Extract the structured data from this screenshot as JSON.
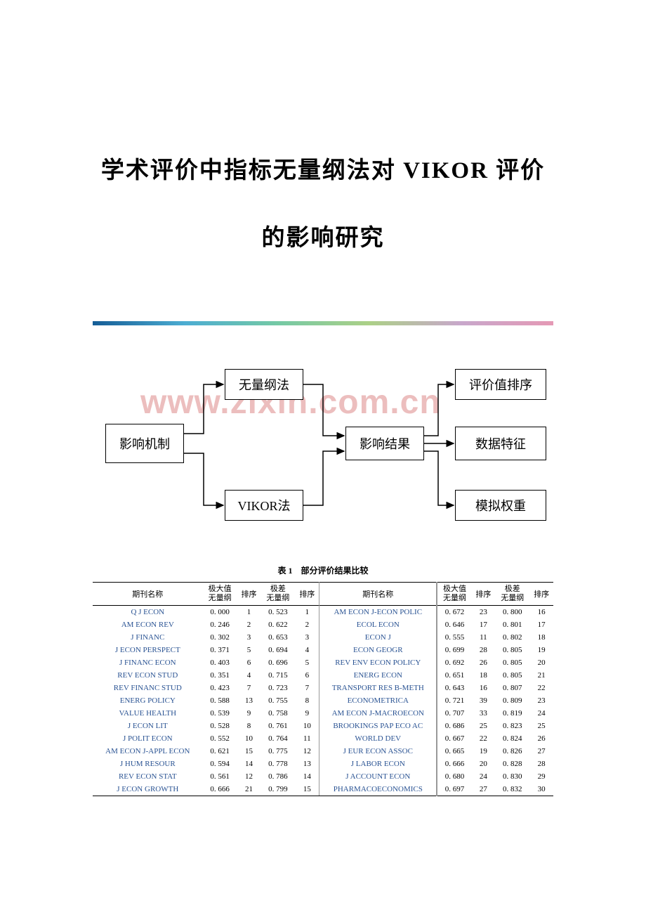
{
  "title_line1": "学术评价中指标无量纲法对 VIKOR 评价",
  "title_line2": "的影响研究",
  "watermark": "www.zixin.com.cn",
  "diagram": {
    "nodes": {
      "left": "影响机制",
      "top_mid": "无量纲法",
      "bot_mid": "VIKOR法",
      "center": "影响结果",
      "right_1": "评价值排序",
      "right_2": "数据特征",
      "right_3": "模拟权重"
    },
    "box_border_color": "#000000",
    "box_bg_color": "#ffffff",
    "node_fontsize": 18,
    "arrow_color": "#000000"
  },
  "gradient_colors": [
    "#155d96",
    "#4cadd2",
    "#74c9a5",
    "#acd087",
    "#c8a7cb",
    "#e599b5"
  ],
  "table": {
    "caption": "表 1　部分评价结果比较",
    "headers": {
      "name": "期刊名称",
      "maxval": "极大值",
      "maxval2": "无量纲",
      "rank": "排序",
      "diffval": "极差",
      "diffval2": "无量纲"
    },
    "journal_color": "#2a5393",
    "header_fontsize": 11,
    "body_fontsize": 11,
    "border_color": "#000000",
    "left_rows": [
      {
        "name": "Q J ECON",
        "maxval": "0. 000",
        "rank1": 1,
        "diffval": "0. 523",
        "rank2": 1
      },
      {
        "name": "AM ECON REV",
        "maxval": "0. 246",
        "rank1": 2,
        "diffval": "0. 622",
        "rank2": 2
      },
      {
        "name": "J FINANC",
        "maxval": "0. 302",
        "rank1": 3,
        "diffval": "0. 653",
        "rank2": 3
      },
      {
        "name": "J ECON PERSPECT",
        "maxval": "0. 371",
        "rank1": 5,
        "diffval": "0. 694",
        "rank2": 4
      },
      {
        "name": "J FINANC ECON",
        "maxval": "0. 403",
        "rank1": 6,
        "diffval": "0. 696",
        "rank2": 5
      },
      {
        "name": "REV ECON STUD",
        "maxval": "0. 351",
        "rank1": 4,
        "diffval": "0. 715",
        "rank2": 6
      },
      {
        "name": "REV FINANC STUD",
        "maxval": "0. 423",
        "rank1": 7,
        "diffval": "0. 723",
        "rank2": 7
      },
      {
        "name": "ENERG POLICY",
        "maxval": "0. 588",
        "rank1": 13,
        "diffval": "0. 755",
        "rank2": 8
      },
      {
        "name": "VALUE HEALTH",
        "maxval": "0. 539",
        "rank1": 9,
        "diffval": "0. 758",
        "rank2": 9
      },
      {
        "name": "J ECON LIT",
        "maxval": "0. 528",
        "rank1": 8,
        "diffval": "0. 761",
        "rank2": 10
      },
      {
        "name": "J POLIT ECON",
        "maxval": "0. 552",
        "rank1": 10,
        "diffval": "0. 764",
        "rank2": 11
      },
      {
        "name": "AM ECON J-APPL ECON",
        "maxval": "0. 621",
        "rank1": 15,
        "diffval": "0. 775",
        "rank2": 12
      },
      {
        "name": "J HUM RESOUR",
        "maxval": "0. 594",
        "rank1": 14,
        "diffval": "0. 778",
        "rank2": 13
      },
      {
        "name": "REV ECON STAT",
        "maxval": "0. 561",
        "rank1": 12,
        "diffval": "0. 786",
        "rank2": 14
      },
      {
        "name": "J ECON GROWTH",
        "maxval": "0. 666",
        "rank1": 21,
        "diffval": "0. 799",
        "rank2": 15
      }
    ],
    "right_rows": [
      {
        "name": "AM ECON J-ECON POLIC",
        "maxval": "0. 672",
        "rank1": 23,
        "diffval": "0. 800",
        "rank2": 16
      },
      {
        "name": "ECOL ECON",
        "maxval": "0. 646",
        "rank1": 17,
        "diffval": "0. 801",
        "rank2": 17
      },
      {
        "name": "ECON J",
        "maxval": "0. 555",
        "rank1": 11,
        "diffval": "0. 802",
        "rank2": 18
      },
      {
        "name": "ECON GEOGR",
        "maxval": "0. 699",
        "rank1": 28,
        "diffval": "0. 805",
        "rank2": 19
      },
      {
        "name": "REV ENV ECON POLICY",
        "maxval": "0. 692",
        "rank1": 26,
        "diffval": "0. 805",
        "rank2": 20
      },
      {
        "name": "ENERG ECON",
        "maxval": "0. 651",
        "rank1": 18,
        "diffval": "0. 805",
        "rank2": 21
      },
      {
        "name": "TRANSPORT RES B-METH",
        "maxval": "0. 643",
        "rank1": 16,
        "diffval": "0. 807",
        "rank2": 22
      },
      {
        "name": "ECONOMETRICA",
        "maxval": "0. 721",
        "rank1": 39,
        "diffval": "0. 809",
        "rank2": 23
      },
      {
        "name": "AM ECON J-MACROECON",
        "maxval": "0. 707",
        "rank1": 33,
        "diffval": "0. 819",
        "rank2": 24
      },
      {
        "name": "BROOKINGS PAP ECO AC",
        "maxval": "0. 686",
        "rank1": 25,
        "diffval": "0. 823",
        "rank2": 25
      },
      {
        "name": "WORLD DEV",
        "maxval": "0. 667",
        "rank1": 22,
        "diffval": "0. 824",
        "rank2": 26
      },
      {
        "name": "J EUR ECON ASSOC",
        "maxval": "0. 665",
        "rank1": 19,
        "diffval": "0. 826",
        "rank2": 27
      },
      {
        "name": "J LABOR ECON",
        "maxval": "0. 666",
        "rank1": 20,
        "diffval": "0. 828",
        "rank2": 28
      },
      {
        "name": "J ACCOUNT ECON",
        "maxval": "0. 680",
        "rank1": 24,
        "diffval": "0. 830",
        "rank2": 29
      },
      {
        "name": "PHARMACOECONOMICS",
        "maxval": "0. 697",
        "rank1": 27,
        "diffval": "0. 832",
        "rank2": 30
      }
    ]
  }
}
